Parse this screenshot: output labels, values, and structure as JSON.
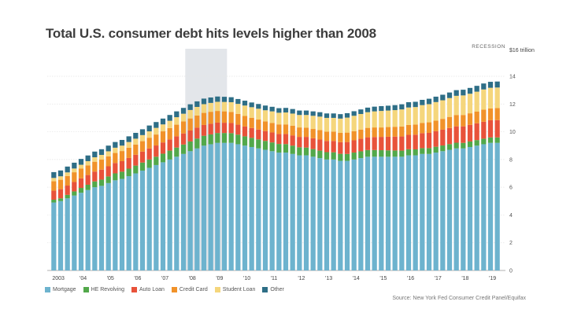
{
  "header": {
    "title": "Total U.S. consumer debt hits levels higher than 2008"
  },
  "footer": {
    "source": "Source: New York Fed Consumer Credit Panel/Equifax"
  },
  "chart_data": {
    "type": "bar",
    "stacked": true,
    "title": "Total U.S. consumer debt hits levels higher than 2008",
    "ylabel": "",
    "xlabel": "",
    "ylim": [
      0,
      16
    ],
    "y_unit_label": "$16 trillion",
    "y_ticks": [
      0,
      2,
      4,
      6,
      8,
      10,
      12,
      14
    ],
    "x_tick_labels": [
      "2003",
      "'04",
      "'05",
      "'06",
      "'07",
      "'08",
      "'09",
      "'10",
      "'11",
      "'12",
      "'13",
      "'14",
      "'15",
      "'16",
      "'17",
      "'18",
      "'19"
    ],
    "categories": [
      "2003Q1",
      "2003Q2",
      "2003Q3",
      "2003Q4",
      "2004Q1",
      "2004Q2",
      "2004Q3",
      "2004Q4",
      "2005Q1",
      "2005Q2",
      "2005Q3",
      "2005Q4",
      "2006Q1",
      "2006Q2",
      "2006Q3",
      "2006Q4",
      "2007Q1",
      "2007Q2",
      "2007Q3",
      "2007Q4",
      "2008Q1",
      "2008Q2",
      "2008Q3",
      "2008Q4",
      "2009Q1",
      "2009Q2",
      "2009Q3",
      "2009Q4",
      "2010Q1",
      "2010Q2",
      "2010Q3",
      "2010Q4",
      "2011Q1",
      "2011Q2",
      "2011Q3",
      "2011Q4",
      "2012Q1",
      "2012Q2",
      "2012Q3",
      "2012Q4",
      "2013Q1",
      "2013Q2",
      "2013Q3",
      "2013Q4",
      "2014Q1",
      "2014Q2",
      "2014Q3",
      "2014Q4",
      "2015Q1",
      "2015Q2",
      "2015Q3",
      "2015Q4",
      "2016Q1",
      "2016Q2",
      "2016Q3",
      "2016Q4",
      "2017Q1",
      "2017Q2",
      "2017Q3",
      "2017Q4",
      "2018Q1",
      "2018Q2",
      "2018Q3",
      "2018Q4",
      "2019Q1",
      "2019Q2"
    ],
    "recession_band": {
      "label": "RECESSION",
      "start": "2008Q1",
      "end": "2009Q2"
    },
    "series": [
      {
        "name": "Mortgage",
        "color": "#6db3ce",
        "values": [
          4.9,
          5.0,
          5.2,
          5.4,
          5.6,
          5.8,
          6.0,
          6.1,
          6.3,
          6.5,
          6.6,
          6.8,
          7.0,
          7.2,
          7.4,
          7.6,
          7.8,
          8.0,
          8.2,
          8.4,
          8.6,
          8.8,
          9.0,
          9.1,
          9.2,
          9.2,
          9.2,
          9.1,
          9.0,
          8.9,
          8.8,
          8.7,
          8.6,
          8.5,
          8.5,
          8.4,
          8.3,
          8.3,
          8.2,
          8.1,
          8.0,
          8.0,
          7.9,
          7.9,
          8.0,
          8.1,
          8.2,
          8.2,
          8.2,
          8.2,
          8.2,
          8.2,
          8.3,
          8.3,
          8.4,
          8.4,
          8.5,
          8.6,
          8.7,
          8.8,
          8.8,
          8.9,
          9.0,
          9.1,
          9.2,
          9.2
        ]
      },
      {
        "name": "HE Revolving",
        "color": "#52a84a",
        "values": [
          0.2,
          0.2,
          0.25,
          0.3,
          0.35,
          0.38,
          0.42,
          0.45,
          0.48,
          0.5,
          0.52,
          0.54,
          0.56,
          0.58,
          0.6,
          0.6,
          0.62,
          0.64,
          0.66,
          0.68,
          0.7,
          0.71,
          0.71,
          0.71,
          0.71,
          0.71,
          0.7,
          0.69,
          0.67,
          0.66,
          0.65,
          0.64,
          0.63,
          0.62,
          0.61,
          0.6,
          0.58,
          0.56,
          0.55,
          0.54,
          0.53,
          0.52,
          0.51,
          0.5,
          0.5,
          0.49,
          0.48,
          0.48,
          0.47,
          0.46,
          0.45,
          0.44,
          0.44,
          0.43,
          0.42,
          0.42,
          0.42,
          0.41,
          0.41,
          0.41,
          0.4,
          0.4,
          0.4,
          0.4,
          0.39,
          0.39
        ]
      },
      {
        "name": "Auto Loan",
        "color": "#e8523a",
        "values": [
          0.65,
          0.66,
          0.67,
          0.68,
          0.69,
          0.7,
          0.71,
          0.72,
          0.73,
          0.75,
          0.76,
          0.77,
          0.78,
          0.79,
          0.8,
          0.81,
          0.81,
          0.81,
          0.81,
          0.8,
          0.79,
          0.79,
          0.78,
          0.77,
          0.75,
          0.74,
          0.73,
          0.72,
          0.71,
          0.71,
          0.71,
          0.71,
          0.72,
          0.72,
          0.73,
          0.74,
          0.75,
          0.77,
          0.78,
          0.8,
          0.81,
          0.82,
          0.84,
          0.86,
          0.88,
          0.9,
          0.92,
          0.94,
          0.96,
          0.98,
          1.0,
          1.02,
          1.04,
          1.06,
          1.08,
          1.1,
          1.12,
          1.14,
          1.16,
          1.18,
          1.19,
          1.2,
          1.21,
          1.22,
          1.24,
          1.25
        ]
      },
      {
        "name": "Credit Card",
        "color": "#f1922a",
        "values": [
          0.68,
          0.68,
          0.69,
          0.7,
          0.7,
          0.7,
          0.71,
          0.72,
          0.72,
          0.72,
          0.73,
          0.74,
          0.74,
          0.75,
          0.77,
          0.79,
          0.8,
          0.82,
          0.84,
          0.86,
          0.87,
          0.87,
          0.87,
          0.86,
          0.84,
          0.82,
          0.8,
          0.78,
          0.76,
          0.74,
          0.72,
          0.7,
          0.69,
          0.69,
          0.69,
          0.7,
          0.68,
          0.67,
          0.67,
          0.68,
          0.67,
          0.67,
          0.67,
          0.68,
          0.66,
          0.67,
          0.68,
          0.69,
          0.68,
          0.7,
          0.71,
          0.72,
          0.71,
          0.73,
          0.74,
          0.76,
          0.76,
          0.78,
          0.8,
          0.82,
          0.82,
          0.83,
          0.84,
          0.87,
          0.85,
          0.87
        ]
      },
      {
        "name": "Student Loan",
        "color": "#f5d67c",
        "values": [
          0.24,
          0.25,
          0.26,
          0.27,
          0.28,
          0.3,
          0.32,
          0.34,
          0.36,
          0.38,
          0.39,
          0.41,
          0.42,
          0.44,
          0.46,
          0.48,
          0.5,
          0.52,
          0.54,
          0.56,
          0.61,
          0.62,
          0.63,
          0.64,
          0.66,
          0.68,
          0.7,
          0.72,
          0.75,
          0.76,
          0.78,
          0.8,
          0.83,
          0.84,
          0.86,
          0.87,
          0.9,
          0.91,
          0.95,
          0.97,
          0.99,
          0.99,
          1.03,
          1.08,
          1.11,
          1.12,
          1.13,
          1.16,
          1.19,
          1.19,
          1.2,
          1.23,
          1.26,
          1.26,
          1.28,
          1.31,
          1.34,
          1.34,
          1.36,
          1.38,
          1.41,
          1.41,
          1.44,
          1.46,
          1.49,
          1.48
        ]
      },
      {
        "name": "Other",
        "color": "#2e6e86",
        "values": [
          0.42,
          0.42,
          0.42,
          0.42,
          0.42,
          0.41,
          0.41,
          0.41,
          0.41,
          0.41,
          0.41,
          0.41,
          0.42,
          0.42,
          0.42,
          0.42,
          0.42,
          0.42,
          0.42,
          0.42,
          0.41,
          0.4,
          0.4,
          0.39,
          0.38,
          0.37,
          0.36,
          0.35,
          0.35,
          0.34,
          0.34,
          0.34,
          0.33,
          0.33,
          0.33,
          0.33,
          0.32,
          0.32,
          0.32,
          0.32,
          0.32,
          0.32,
          0.32,
          0.32,
          0.33,
          0.33,
          0.33,
          0.34,
          0.35,
          0.35,
          0.36,
          0.37,
          0.38,
          0.38,
          0.38,
          0.39,
          0.39,
          0.4,
          0.4,
          0.41,
          0.41,
          0.42,
          0.42,
          0.43,
          0.43,
          0.43
        ]
      }
    ]
  }
}
